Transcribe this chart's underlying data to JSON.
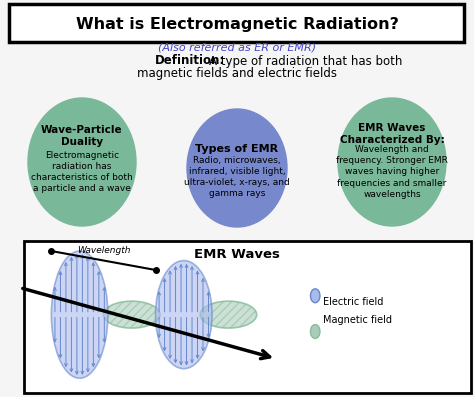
{
  "title": "What is Electromagnetic Radiation?",
  "subtitle": "(Also referred as ER or EMR)",
  "definition_bold": "Definition:",
  "definition_text": "A type of radiation that has both\nmagnetic fields and electric fields",
  "circle1_title": "Wave-Particle\nDuality",
  "circle1_body": "Electromagnetic\nradiation has\ncharacteristics of both\na particle and a wave",
  "circle2_title": "Types of EMR",
  "circle2_body": "Radio, microwaves,\ninfrared, visible light,\nultra-violet, x-rays, and\ngamma rays",
  "circle3_title": "EMR Waves\nCharacterized By:",
  "circle3_body": "Wavelength and\nfrequency. Stronger EMR\nwaves having higher\nfrequencies and smaller\nwavelengths",
  "wave_box_title": "EMR Waves",
  "wavelength_label": "Wavelength",
  "legend_electric": "Electric field",
  "legend_magnetic": "Magnetic field",
  "color_green_circle": "#7ab89a",
  "color_blue_circle": "#7788cc",
  "color_subtitle": "#4444cc",
  "color_bg": "#f5f5f5",
  "color_wave_blue": "#6688cc",
  "color_wave_green": "#88bb99",
  "color_wave_blue_fill": "#aabbee",
  "color_wave_green_fill": "#aaccbb"
}
